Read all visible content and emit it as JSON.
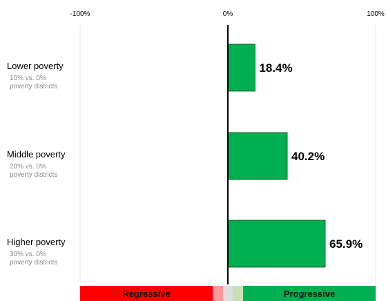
{
  "chart_data": {
    "type": "bar",
    "orientation": "horizontal",
    "xlim": [
      -100,
      100
    ],
    "x_ticks": [
      "-100%",
      "0%",
      "100%"
    ],
    "categories": [
      {
        "label": "Lower poverty",
        "sublabel_1": "10% vs. 0%",
        "sublabel_2": "poverty districts"
      },
      {
        "label": "Middle poverty",
        "sublabel_1": "20% vs. 0%",
        "sublabel_2": "poverty districts"
      },
      {
        "label": "Higher poverty",
        "sublabel_1": "30% vs. 0%",
        "sublabel_2": "poverty districts"
      }
    ],
    "values": [
      18.4,
      40.2,
      65.9
    ],
    "value_labels": [
      "18.4%",
      "40.2%",
      "65.9%"
    ],
    "bar_color": "#00b050",
    "scale": {
      "left_label": "Regressive",
      "right_label": "Progressive",
      "colors": [
        "#ff0000",
        "#ff9999",
        "#dddddd",
        "#c6e0b4",
        "#00b050"
      ]
    }
  }
}
